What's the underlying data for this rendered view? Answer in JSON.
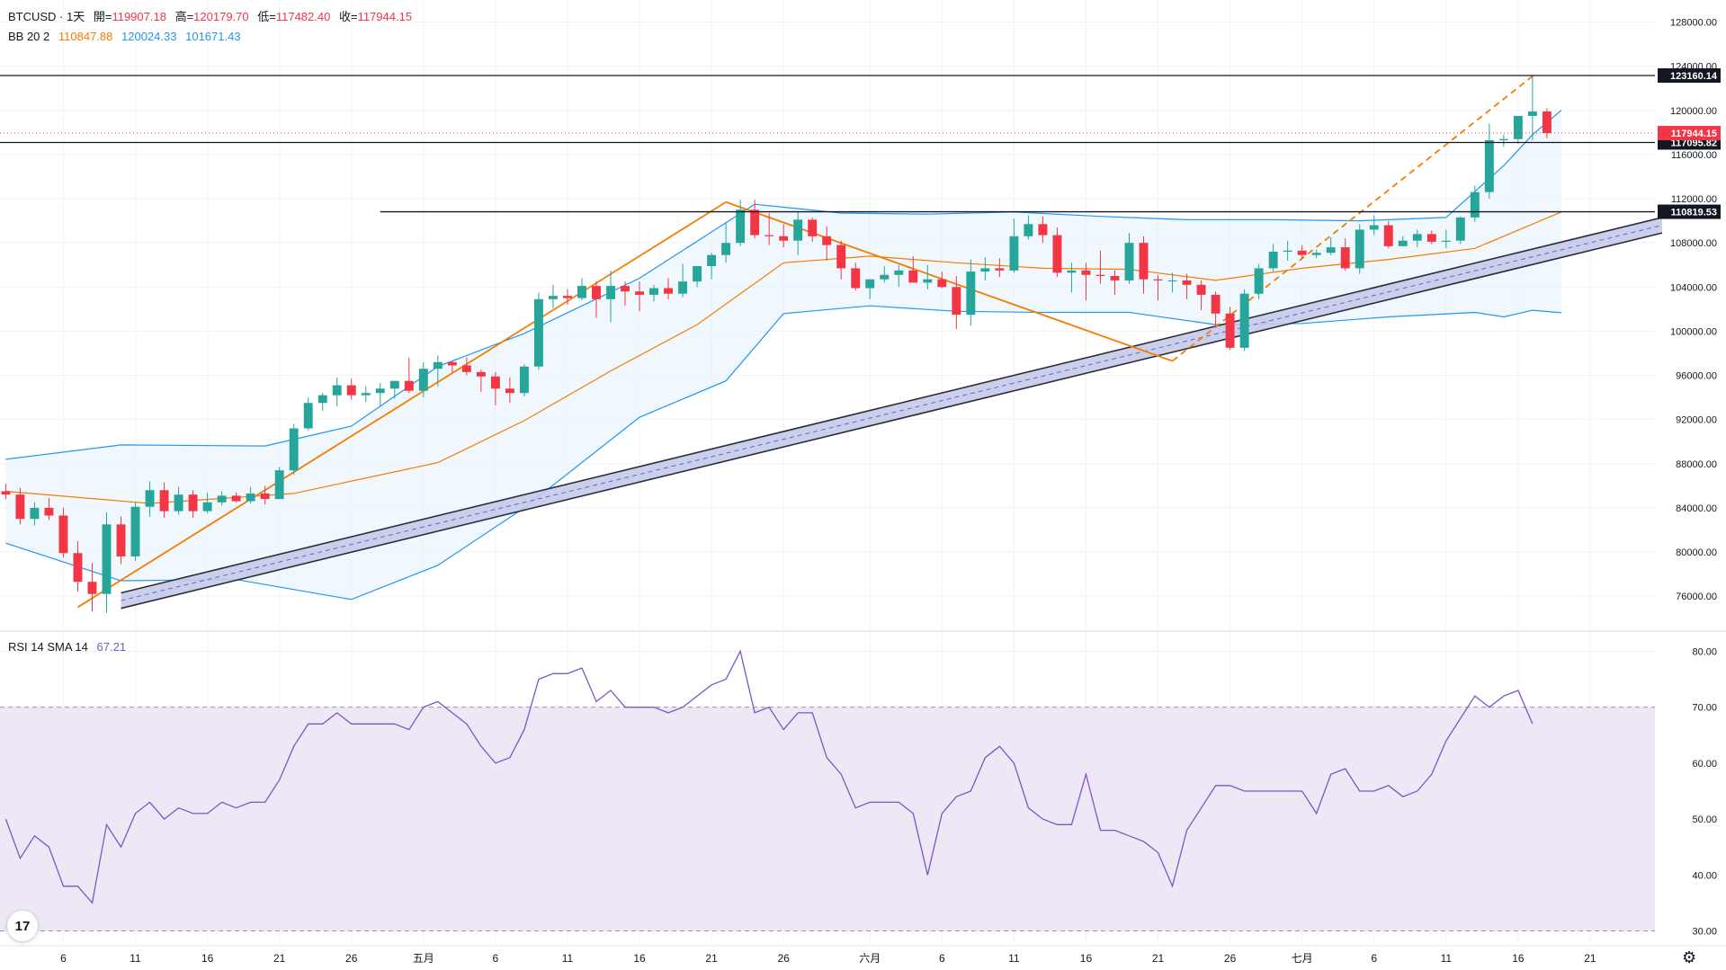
{
  "legend": {
    "symbol": "BTCUSD · 1天",
    "open_label": "開=",
    "open": "119907.18",
    "high_label": "高=",
    "high": "120179.70",
    "low_label": "低=",
    "low": "117482.40",
    "close_label": "收=",
    "close": "117944.15",
    "bb_label": "BB 20 2",
    "bb_basis": "110847.88",
    "bb_upper": "120024.33",
    "bb_lower": "101671.43",
    "rsi_label": "RSI 14 SMA 14",
    "rsi_value": "67.21"
  },
  "colors": {
    "up": "#26a69a",
    "down": "#f23645",
    "bb_band": "#2196f3",
    "bb_basis": "#f57c00",
    "bb_fill": "#e3f2fd",
    "trend": "#f57c00",
    "channel_fill": "#c5cae9",
    "rsi_line": "#7e57c2",
    "rsi_fill": "#ede7f6",
    "level": "#131722"
  },
  "price_axis_ticks": [
    "128000.00",
    "124000.00",
    "120000.00",
    "116000.00",
    "112000.00",
    "108000.00",
    "104000.00",
    "100000.00",
    "96000.00",
    "92000.00",
    "88000.00",
    "84000.00",
    "80000.00",
    "76000.00"
  ],
  "rsi_axis_ticks": [
    "80.00",
    "70.00",
    "60.00",
    "50.00",
    "40.00",
    "30.00"
  ],
  "time_axis_labels": [
    "6",
    "11",
    "16",
    "21",
    "26",
    "五月",
    "6",
    "11",
    "16",
    "21",
    "26",
    "六月",
    "6",
    "11",
    "16",
    "21",
    "26",
    "七月",
    "6",
    "11",
    "16",
    "21"
  ],
  "level_lines": [
    "123160.14",
    "117095.82",
    "110819.53"
  ],
  "last_price_label": "117944.15",
  "tv_logo_text": "17",
  "settings_icon": "gear-icon",
  "chart_data": {
    "type": "candlestick",
    "x_unit": "day index (0 = first visible candle)",
    "candles": [
      [
        85500,
        86200,
        84800,
        85200
      ],
      [
        85200,
        85800,
        82500,
        83000
      ],
      [
        83000,
        84500,
        82400,
        84000
      ],
      [
        84000,
        84900,
        82900,
        83300
      ],
      [
        83300,
        84000,
        79500,
        79900
      ],
      [
        79900,
        81000,
        76400,
        77300
      ],
      [
        77300,
        79000,
        74600,
        76200
      ],
      [
        76200,
        83600,
        74500,
        82500
      ],
      [
        82500,
        83200,
        78900,
        79600
      ],
      [
        79600,
        84500,
        79200,
        84100
      ],
      [
        84100,
        86400,
        83200,
        85600
      ],
      [
        85600,
        86300,
        83100,
        83700
      ],
      [
        83700,
        85900,
        83400,
        85200
      ],
      [
        85200,
        85600,
        83100,
        83700
      ],
      [
        83700,
        85400,
        83500,
        84500
      ],
      [
        84500,
        85500,
        84200,
        85100
      ],
      [
        85100,
        85400,
        84500,
        84600
      ],
      [
        84600,
        85900,
        84400,
        85300
      ],
      [
        85300,
        86000,
        84300,
        84800
      ],
      [
        84800,
        87700,
        84800,
        87400
      ],
      [
        87400,
        91600,
        87000,
        91200
      ],
      [
        91200,
        94000,
        91000,
        93500
      ],
      [
        93500,
        94400,
        92800,
        94200
      ],
      [
        94200,
        95800,
        93200,
        95100
      ],
      [
        95100,
        95700,
        93800,
        94200
      ],
      [
        94200,
        95000,
        93600,
        94400
      ],
      [
        94400,
        95300,
        93200,
        94800
      ],
      [
        94800,
        95200,
        93900,
        95500
      ],
      [
        95500,
        97600,
        94400,
        94600
      ],
      [
        94600,
        97200,
        94000,
        96600
      ],
      [
        96600,
        97800,
        95000,
        97200
      ],
      [
        97200,
        97300,
        96300,
        96900
      ],
      [
        96900,
        97600,
        96000,
        96300
      ],
      [
        96300,
        96500,
        94500,
        95900
      ],
      [
        95900,
        96300,
        93300,
        94800
      ],
      [
        94800,
        95800,
        93500,
        94400
      ],
      [
        94400,
        97000,
        94100,
        96800
      ],
      [
        96800,
        103500,
        96500,
        102900
      ],
      [
        102900,
        104200,
        102100,
        103200
      ],
      [
        103200,
        103800,
        102400,
        103000
      ],
      [
        103000,
        104800,
        102800,
        104100
      ],
      [
        104100,
        104500,
        101200,
        102900
      ],
      [
        102900,
        105500,
        100800,
        104100
      ],
      [
        104100,
        104500,
        102300,
        103600
      ],
      [
        103600,
        104500,
        101800,
        103300
      ],
      [
        103300,
        104200,
        102700,
        103900
      ],
      [
        103900,
        104800,
        102900,
        103400
      ],
      [
        103400,
        106100,
        103100,
        104500
      ],
      [
        104500,
        105800,
        104000,
        105900
      ],
      [
        105900,
        107100,
        104700,
        106900
      ],
      [
        106900,
        109900,
        106200,
        108000
      ],
      [
        108000,
        111900,
        107700,
        111000
      ],
      [
        111000,
        111900,
        108400,
        108700
      ],
      [
        108700,
        110700,
        107800,
        108600
      ],
      [
        108600,
        109700,
        107600,
        108200
      ],
      [
        108200,
        110800,
        106900,
        110100
      ],
      [
        110100,
        110300,
        108100,
        108600
      ],
      [
        108600,
        109500,
        106400,
        107800
      ],
      [
        107800,
        108200,
        104700,
        105700
      ],
      [
        105700,
        106200,
        103700,
        103900
      ],
      [
        103900,
        104700,
        102900,
        104700
      ],
      [
        104700,
        105900,
        104400,
        105100
      ],
      [
        105100,
        106000,
        104000,
        105500
      ],
      [
        105500,
        106800,
        104400,
        104400
      ],
      [
        104400,
        106000,
        103800,
        104700
      ],
      [
        104700,
        105400,
        103900,
        104000
      ],
      [
        104000,
        105000,
        100200,
        101500
      ],
      [
        101500,
        106500,
        100500,
        105400
      ],
      [
        105400,
        106700,
        104600,
        105700
      ],
      [
        105700,
        106600,
        104900,
        105500
      ],
      [
        105500,
        110200,
        105300,
        108600
      ],
      [
        108600,
        110500,
        108300,
        109700
      ],
      [
        109700,
        110400,
        108000,
        108700
      ],
      [
        108700,
        109400,
        104900,
        105300
      ],
      [
        105300,
        106200,
        103500,
        105500
      ],
      [
        105500,
        106200,
        102800,
        105100
      ],
      [
        105100,
        107300,
        104300,
        105000
      ],
      [
        105000,
        105500,
        103300,
        104600
      ],
      [
        104600,
        108900,
        104300,
        108000
      ],
      [
        108000,
        108600,
        103400,
        104700
      ],
      [
        104700,
        105100,
        102800,
        104600
      ],
      [
        104600,
        105300,
        103500,
        104600
      ],
      [
        104600,
        105200,
        102900,
        104200
      ],
      [
        104200,
        104600,
        101900,
        103300
      ],
      [
        103300,
        103600,
        100300,
        101600
      ],
      [
        101600,
        102200,
        98300,
        98500
      ],
      [
        98500,
        103800,
        98200,
        103400
      ],
      [
        103400,
        106100,
        102900,
        105700
      ],
      [
        105700,
        107900,
        105400,
        107200
      ],
      [
        107200,
        108200,
        106400,
        107300
      ],
      [
        107300,
        107800,
        106500,
        106900
      ],
      [
        106900,
        107400,
        106600,
        107100
      ],
      [
        107100,
        108500,
        106900,
        107600
      ],
      [
        107600,
        108400,
        105500,
        105700
      ],
      [
        105700,
        109700,
        105200,
        109200
      ],
      [
        109200,
        110500,
        108700,
        109600
      ],
      [
        109600,
        110000,
        107500,
        107700
      ],
      [
        107700,
        108600,
        107700,
        108200
      ],
      [
        108200,
        109200,
        107600,
        108800
      ],
      [
        108800,
        109100,
        107900,
        108100
      ],
      [
        108100,
        109200,
        107500,
        108200
      ],
      [
        108200,
        110400,
        107900,
        110300
      ],
      [
        110300,
        113200,
        109900,
        112600
      ],
      [
        112600,
        118800,
        112000,
        117300
      ],
      [
        117300,
        117800,
        116700,
        117400
      ],
      [
        117400,
        119400,
        117000,
        119500
      ],
      [
        119500,
        123160,
        117300,
        119900
      ],
      [
        119907,
        120180,
        117482,
        117944
      ]
    ],
    "bb_basis": [
      [
        0,
        85500
      ],
      [
        10,
        84400
      ],
      [
        20,
        85300
      ],
      [
        30,
        88100
      ],
      [
        36,
        91900
      ],
      [
        42,
        96400
      ],
      [
        48,
        100600
      ],
      [
        54,
        106200
      ],
      [
        60,
        106800
      ],
      [
        66,
        106200
      ],
      [
        72,
        105700
      ],
      [
        78,
        105600
      ],
      [
        84,
        104600
      ],
      [
        90,
        105700
      ],
      [
        96,
        106500
      ],
      [
        102,
        107500
      ],
      [
        108,
        110800
      ]
    ],
    "bb_upper": [
      [
        0,
        88400
      ],
      [
        8,
        89700
      ],
      [
        18,
        89600
      ],
      [
        24,
        91400
      ],
      [
        30,
        96800
      ],
      [
        36,
        99800
      ],
      [
        44,
        104800
      ],
      [
        52,
        111500
      ],
      [
        58,
        110700
      ],
      [
        64,
        110600
      ],
      [
        70,
        110800
      ],
      [
        76,
        110400
      ],
      [
        82,
        110100
      ],
      [
        88,
        110100
      ],
      [
        94,
        110000
      ],
      [
        100,
        110300
      ],
      [
        104,
        115000
      ],
      [
        106,
        117800
      ],
      [
        108,
        120020
      ]
    ],
    "bb_lower": [
      [
        0,
        80800
      ],
      [
        8,
        77400
      ],
      [
        16,
        77500
      ],
      [
        24,
        75700
      ],
      [
        30,
        78800
      ],
      [
        36,
        84000
      ],
      [
        44,
        92200
      ],
      [
        50,
        95500
      ],
      [
        54,
        101600
      ],
      [
        60,
        102300
      ],
      [
        66,
        101800
      ],
      [
        72,
        101700
      ],
      [
        78,
        101700
      ],
      [
        84,
        100600
      ],
      [
        90,
        100700
      ],
      [
        96,
        101300
      ],
      [
        102,
        101700
      ],
      [
        104,
        101300
      ],
      [
        106,
        101900
      ],
      [
        108,
        101670
      ]
    ],
    "trend_lines": [
      {
        "name": "orange-rising",
        "from": [
          5,
          75000
        ],
        "to": [
          50,
          111700
        ],
        "style": "solid"
      },
      {
        "name": "orange-falling",
        "from": [
          50,
          111700
        ],
        "to": [
          81,
          97300
        ],
        "style": "solid"
      },
      {
        "name": "orange-projection",
        "from": [
          81,
          97300
        ],
        "to": [
          106,
          123100
        ],
        "style": "dashed"
      }
    ],
    "channel": {
      "from": [
        8,
        75600
      ],
      "to": [
        115,
        109600
      ],
      "width": 1400
    },
    "horizontal_levels": [
      {
        "price": 123160.14,
        "from": 0
      },
      {
        "price": 117095.82,
        "from": 0
      },
      {
        "price": 110819.53,
        "from": 26
      }
    ],
    "last_price": 117944.15,
    "price_range": [
      73000,
      130000
    ],
    "x_range": [
      -0.4,
      114.5
    ],
    "rsi": {
      "period": 14,
      "value": 67.21,
      "range": [
        28,
        82
      ],
      "band": [
        30,
        70
      ],
      "values": [
        [
          0,
          50
        ],
        [
          1,
          43
        ],
        [
          2,
          47
        ],
        [
          3,
          45
        ],
        [
          4,
          38
        ],
        [
          5,
          38
        ],
        [
          6,
          35
        ],
        [
          7,
          49
        ],
        [
          8,
          45
        ],
        [
          9,
          51
        ],
        [
          10,
          53
        ],
        [
          11,
          50
        ],
        [
          12,
          52
        ],
        [
          13,
          51
        ],
        [
          14,
          51
        ],
        [
          15,
          53
        ],
        [
          16,
          52
        ],
        [
          17,
          53
        ],
        [
          18,
          53
        ],
        [
          19,
          57
        ],
        [
          20,
          63
        ],
        [
          21,
          67
        ],
        [
          22,
          67
        ],
        [
          23,
          69
        ],
        [
          24,
          67
        ],
        [
          25,
          67
        ],
        [
          26,
          67
        ],
        [
          27,
          67
        ],
        [
          28,
          66
        ],
        [
          29,
          70
        ],
        [
          30,
          71
        ],
        [
          31,
          69
        ],
        [
          32,
          67
        ],
        [
          33,
          63
        ],
        [
          34,
          60
        ],
        [
          35,
          61
        ],
        [
          36,
          66
        ],
        [
          37,
          75
        ],
        [
          38,
          76
        ],
        [
          39,
          76
        ],
        [
          40,
          77
        ],
        [
          41,
          71
        ],
        [
          42,
          73
        ],
        [
          43,
          70
        ],
        [
          44,
          70
        ],
        [
          45,
          70
        ],
        [
          46,
          69
        ],
        [
          47,
          70
        ],
        [
          48,
          72
        ],
        [
          49,
          74
        ],
        [
          50,
          75
        ],
        [
          51,
          80
        ],
        [
          52,
          69
        ],
        [
          53,
          70
        ],
        [
          54,
          66
        ],
        [
          55,
          69
        ],
        [
          56,
          69
        ],
        [
          57,
          61
        ],
        [
          58,
          58
        ],
        [
          59,
          52
        ],
        [
          60,
          53
        ],
        [
          61,
          53
        ],
        [
          62,
          53
        ],
        [
          63,
          51
        ],
        [
          64,
          40
        ],
        [
          65,
          51
        ],
        [
          66,
          54
        ],
        [
          67,
          55
        ],
        [
          68,
          61
        ],
        [
          69,
          63
        ],
        [
          70,
          60
        ],
        [
          71,
          52
        ],
        [
          72,
          50
        ],
        [
          73,
          49
        ],
        [
          74,
          49
        ],
        [
          75,
          58
        ],
        [
          76,
          48
        ],
        [
          77,
          48
        ],
        [
          78,
          47
        ],
        [
          79,
          46
        ],
        [
          80,
          44
        ],
        [
          81,
          38
        ],
        [
          82,
          48
        ],
        [
          83,
          52
        ],
        [
          84,
          56
        ],
        [
          85,
          56
        ],
        [
          86,
          55
        ],
        [
          87,
          55
        ],
        [
          88,
          55
        ],
        [
          89,
          55
        ],
        [
          90,
          55
        ],
        [
          91,
          51
        ],
        [
          92,
          58
        ],
        [
          93,
          59
        ],
        [
          94,
          55
        ],
        [
          95,
          55
        ],
        [
          96,
          56
        ],
        [
          97,
          54
        ],
        [
          98,
          55
        ],
        [
          99,
          58
        ],
        [
          100,
          64
        ],
        [
          101,
          68
        ],
        [
          102,
          72
        ],
        [
          103,
          70
        ],
        [
          104,
          72
        ],
        [
          105,
          73
        ],
        [
          106,
          67
        ]
      ]
    }
  }
}
